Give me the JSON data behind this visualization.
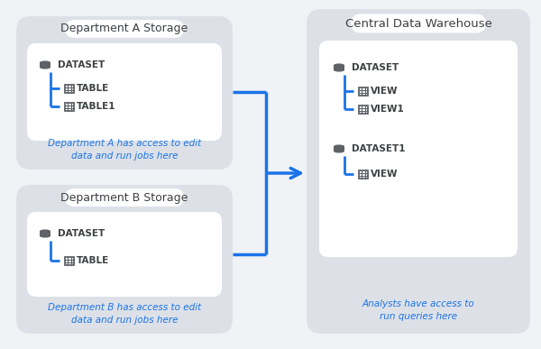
{
  "bg_color": "#f0f2f5",
  "outer_box_color": "#dde1e7",
  "inner_box_color": "#ffffff",
  "title_box_color": "#ffffff",
  "blue_color": "#1a73e8",
  "text_dark": "#3c4043",
  "icon_color": "#5f6368",
  "dept_a": {
    "title": "Department A Storage",
    "caption": "Department A has access to edit\ndata and run jobs here",
    "dataset": "DATASET",
    "items": [
      "TABLE",
      "TABLE1"
    ]
  },
  "dept_b": {
    "title": "Department B Storage",
    "caption": "Department B has access to edit\ndata and run jobs here",
    "dataset": "DATASET",
    "items": [
      "TABLE"
    ]
  },
  "central": {
    "title": "Central Data Warehouse",
    "caption": "Analysts have access to\nrun queries here",
    "datasets": [
      {
        "name": "DATASET",
        "items": [
          "VIEW",
          "VIEW1"
        ]
      },
      {
        "name": "DATASET1",
        "items": [
          "VIEW"
        ]
      }
    ]
  },
  "figsize": [
    6.0,
    3.87
  ],
  "dpi": 100
}
